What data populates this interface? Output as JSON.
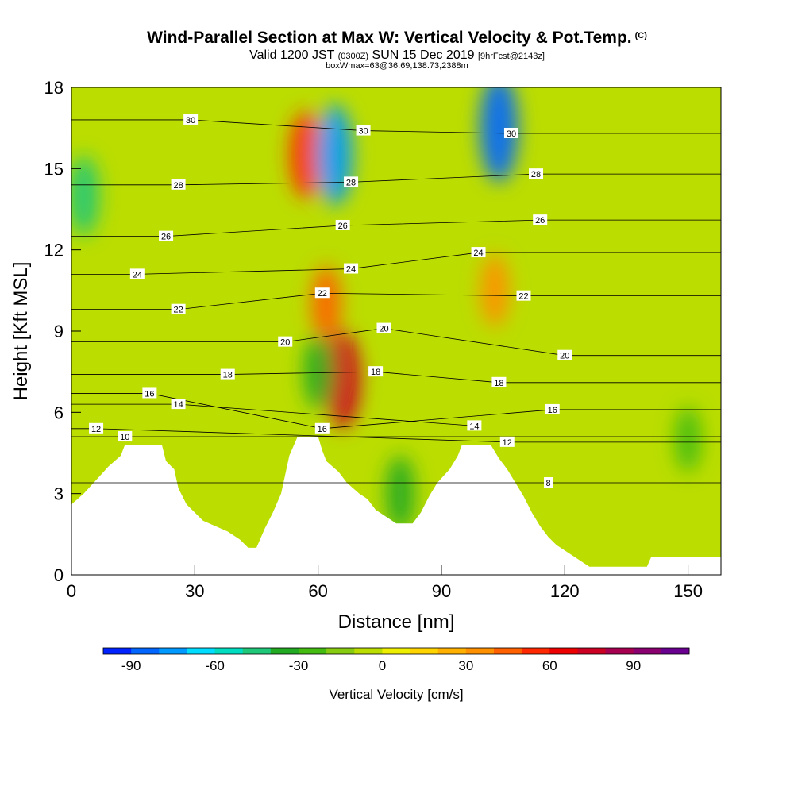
{
  "title": {
    "main": "Wind-Parallel Section at Max W: Vertical Velocity & Pot.Temp.",
    "copyright": "(C)",
    "valid_prefix": "Valid 1200 JST",
    "valid_utc": "(0300Z)",
    "valid_date": "SUN 15 Dec 2019",
    "forecast": "[9hrFcst@2143z]",
    "boxline": "boxWmax=63@36.69,138.73,2388m"
  },
  "chart_data": {
    "type": "heatmap",
    "xlabel": "Distance [nm]",
    "ylabel": "Height [Kft MSL]",
    "xlim": [
      0,
      158
    ],
    "ylim": [
      0,
      18
    ],
    "x_ticks": [
      "0",
      "30",
      "60",
      "90",
      "120",
      "150"
    ],
    "x_tick_values": [
      0,
      30,
      60,
      90,
      120,
      150
    ],
    "y_ticks": [
      "0",
      "3",
      "6",
      "9",
      "12",
      "15",
      "18"
    ],
    "y_tick_values": [
      0,
      3,
      6,
      9,
      12,
      15,
      18
    ],
    "terrain": [
      [
        0,
        2.6
      ],
      [
        3,
        3
      ],
      [
        6,
        3.5
      ],
      [
        9,
        4
      ],
      [
        12,
        4.4
      ],
      [
        13,
        4.8
      ],
      [
        22,
        4.8
      ],
      [
        23,
        4.2
      ],
      [
        25,
        3.9
      ],
      [
        26,
        3.2
      ],
      [
        28,
        2.6
      ],
      [
        30,
        2.3
      ],
      [
        32,
        2
      ],
      [
        35,
        1.8
      ],
      [
        38,
        1.6
      ],
      [
        41,
        1.3
      ],
      [
        43,
        1.0
      ],
      [
        45,
        1.0
      ],
      [
        47,
        1.7
      ],
      [
        49,
        2.3
      ],
      [
        51,
        3.0
      ],
      [
        53,
        4.4
      ],
      [
        55,
        5.1
      ],
      [
        60,
        5.1
      ],
      [
        61,
        4.6
      ],
      [
        62,
        4.2
      ],
      [
        65,
        3.8
      ],
      [
        67,
        3.4
      ],
      [
        70,
        3.0
      ],
      [
        72,
        2.8
      ],
      [
        74,
        2.4
      ],
      [
        77,
        2.1
      ],
      [
        79,
        1.9
      ],
      [
        83,
        1.9
      ],
      [
        85,
        2.3
      ],
      [
        87,
        2.9
      ],
      [
        89,
        3.4
      ],
      [
        92,
        3.9
      ],
      [
        94,
        4.4
      ],
      [
        95,
        4.8
      ],
      [
        102,
        4.8
      ],
      [
        104,
        4.3
      ],
      [
        106,
        3.9
      ],
      [
        108,
        3.4
      ],
      [
        110,
        2.9
      ],
      [
        112,
        2.3
      ],
      [
        114,
        1.8
      ],
      [
        116,
        1.4
      ],
      [
        118,
        1.1
      ],
      [
        120,
        0.9
      ],
      [
        123,
        0.6
      ],
      [
        126,
        0.3
      ],
      [
        130,
        0.3
      ],
      [
        140,
        0.3
      ],
      [
        141,
        0.65
      ],
      [
        158,
        0.65
      ]
    ],
    "velocity_cores": [
      {
        "x": 57,
        "y": 15.5,
        "value": 55
      },
      {
        "x": 64,
        "y": 15.5,
        "value": -75
      },
      {
        "x": 66,
        "y": 7.2,
        "value": 70
      },
      {
        "x": 62,
        "y": 10,
        "value": 40
      },
      {
        "x": 60,
        "y": 7.5,
        "value": -40
      },
      {
        "x": 104,
        "y": 16.5,
        "value": -85
      },
      {
        "x": 103,
        "y": 10.5,
        "value": 35
      },
      {
        "x": 80,
        "y": 3,
        "value": -40
      },
      {
        "x": 3,
        "y": 14,
        "value": -45
      },
      {
        "x": 150,
        "y": 5,
        "value": -25
      }
    ],
    "theta_contours": [
      {
        "label": "8",
        "label_x": 116,
        "label_y": 3.4
      },
      {
        "label": "10",
        "label_x": 13,
        "label_y": 5.1
      },
      {
        "label": "12",
        "label_x": 6,
        "label_y": 5.4
      },
      {
        "label": "12",
        "label_x": 106,
        "label_y": 4.9
      },
      {
        "label": "14",
        "label_x": 26,
        "label_y": 6.3
      },
      {
        "label": "14",
        "label_x": 98,
        "label_y": 5.5
      },
      {
        "label": "16",
        "label_x": 19,
        "label_y": 6.7
      },
      {
        "label": "16",
        "label_x": 61,
        "label_y": 5.4
      },
      {
        "label": "16",
        "label_x": 117,
        "label_y": 6.1
      },
      {
        "label": "18",
        "label_x": 38,
        "label_y": 7.4
      },
      {
        "label": "18",
        "label_x": 74,
        "label_y": 7.5
      },
      {
        "label": "18",
        "label_x": 104,
        "label_y": 7.1
      },
      {
        "label": "20",
        "label_x": 52,
        "label_y": 8.6
      },
      {
        "label": "20",
        "label_x": 76,
        "label_y": 9.1
      },
      {
        "label": "20",
        "label_x": 120,
        "label_y": 8.1
      },
      {
        "label": "22",
        "label_x": 26,
        "label_y": 9.8
      },
      {
        "label": "22",
        "label_x": 61,
        "label_y": 10.4
      },
      {
        "label": "22",
        "label_x": 110,
        "label_y": 10.3
      },
      {
        "label": "24",
        "label_x": 16,
        "label_y": 11.1
      },
      {
        "label": "24",
        "label_x": 68,
        "label_y": 11.3
      },
      {
        "label": "24",
        "label_x": 99,
        "label_y": 11.9
      },
      {
        "label": "26",
        "label_x": 23,
        "label_y": 12.5
      },
      {
        "label": "26",
        "label_x": 66,
        "label_y": 12.9
      },
      {
        "label": "26",
        "label_x": 114,
        "label_y": 13.1
      },
      {
        "label": "28",
        "label_x": 26,
        "label_y": 14.4
      },
      {
        "label": "28",
        "label_x": 68,
        "label_y": 14.5
      },
      {
        "label": "28",
        "label_x": 113,
        "label_y": 14.8
      },
      {
        "label": "30",
        "label_x": 29,
        "label_y": 16.8
      },
      {
        "label": "30",
        "label_x": 71,
        "label_y": 16.4
      },
      {
        "label": "30",
        "label_x": 107,
        "label_y": 16.3
      }
    ],
    "colorbar": {
      "title": "Vertical Velocity [cm/s]",
      "labels": [
        "-90",
        "-60",
        "-30",
        "0",
        "30",
        "60",
        "90"
      ],
      "label_values": [
        -90,
        -60,
        -30,
        0,
        30,
        60,
        90
      ],
      "min": -100,
      "max": 110,
      "step": 10,
      "colors": [
        "#0022ff",
        "#0066ff",
        "#0099ff",
        "#00ddff",
        "#00dcc0",
        "#1ec878",
        "#22aa22",
        "#44bb11",
        "#88cc11",
        "#bbdd00",
        "#eeee00",
        "#ffd400",
        "#ffb000",
        "#ff9000",
        "#ff6000",
        "#ff2800",
        "#ee0000",
        "#cc0022",
        "#a80050",
        "#8a0070",
        "#6a0090"
      ]
    }
  }
}
